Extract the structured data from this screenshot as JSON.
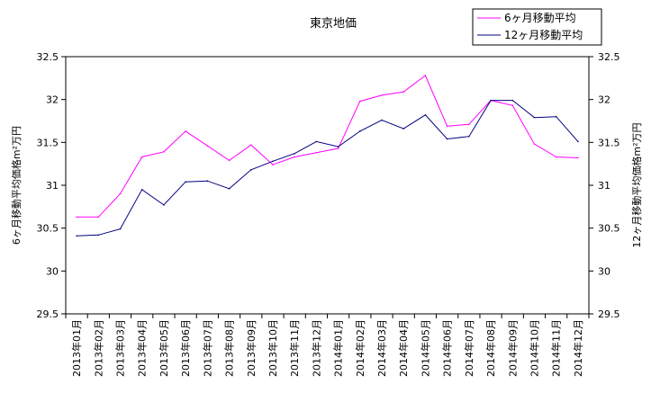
{
  "chart_data": {
    "type": "line",
    "title": "東京地価",
    "ylabel_left": "6ヶ月移動平均価格m²万円",
    "ylabel_right": "12ヶ月移動平均価格m²万円",
    "xlabel": "",
    "categories": [
      "2013年01月",
      "2013年02月",
      "2013年03月",
      "2013年04月",
      "2013年05月",
      "2013年06月",
      "2013年07月",
      "2013年08月",
      "2013年09月",
      "2013年10月",
      "2013年11月",
      "2013年12月",
      "2014年01月",
      "2014年02月",
      "2014年03月",
      "2014年04月",
      "2014年05月",
      "2014年06月",
      "2014年07月",
      "2014年08月",
      "2014年09月",
      "2014年10月",
      "2014年11月",
      "2014年12月"
    ],
    "ylim": [
      29.5,
      32.5
    ],
    "yticks": [
      "29.5",
      "30",
      "30.5",
      "31",
      "31.5",
      "32",
      "32.5"
    ],
    "grid": false,
    "legend_position": "top-right",
    "series": [
      {
        "name": "6ヶ月移動平均",
        "color": "#ff00ff",
        "values": [
          30.63,
          30.63,
          30.9,
          31.33,
          31.39,
          31.63,
          31.46,
          31.29,
          31.47,
          31.24,
          31.33,
          31.38,
          31.43,
          31.98,
          32.05,
          32.09,
          32.28,
          31.69,
          31.71,
          31.99,
          31.93,
          31.48,
          31.33,
          31.32
        ]
      },
      {
        "name": "12ヶ月移動平均",
        "color": "#000080",
        "values": [
          30.41,
          30.42,
          30.49,
          30.95,
          30.77,
          31.04,
          31.05,
          30.96,
          31.18,
          31.28,
          31.37,
          31.51,
          31.45,
          31.63,
          31.76,
          31.66,
          31.82,
          31.54,
          31.57,
          31.99,
          31.99,
          31.79,
          31.8,
          31.51
        ]
      }
    ]
  }
}
